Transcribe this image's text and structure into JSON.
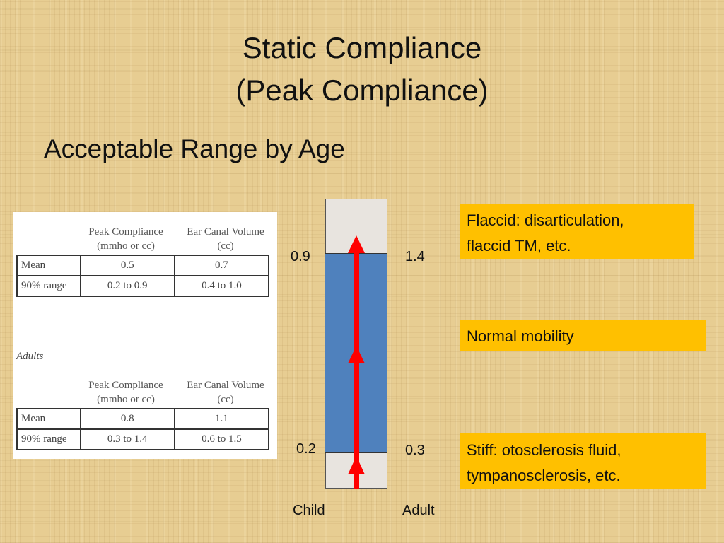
{
  "slide": {
    "title_line1": "Static Compliance",
    "title_line2": "(Peak Compliance)",
    "subtitle": "Acceptable Range by Age"
  },
  "reference_tables": {
    "adults_label": "Adults",
    "children": {
      "header_peak": [
        "Peak Compliance",
        "(mmho or cc)"
      ],
      "header_ecv": [
        "Ear Canal Volume",
        "(cc)"
      ],
      "rows": [
        {
          "label": "Mean",
          "peak": "0.5",
          "ecv": "0.7"
        },
        {
          "label": "90% range",
          "peak": "0.2 to 0.9",
          "ecv": "0.4 to 1.0"
        }
      ]
    },
    "adults": {
      "header_peak": [
        "Peak Compliance",
        "(mmho or cc)"
      ],
      "header_ecv": [
        "Ear Canal Volume",
        "(cc)"
      ],
      "rows": [
        {
          "label": "Mean",
          "peak": "0.8",
          "ecv": "1.1"
        },
        {
          "label": "90% range",
          "peak": "0.3 to 1.4",
          "ecv": "0.6 to 1.5"
        }
      ]
    }
  },
  "range_bar": {
    "child_upper": "0.9",
    "child_lower": "0.2",
    "adult_upper": "1.4",
    "adult_lower": "0.3",
    "child_label": "Child",
    "adult_label": "Adult",
    "fill_color": "#4f81bd",
    "arrow_color": "#ff0000"
  },
  "notes": {
    "flaccid": [
      "Flaccid:  disarticulation,",
      "flaccid TM, etc."
    ],
    "normal": "Normal mobility",
    "stiff": [
      "Stiff:  otosclerosis  fluid,",
      "tympanosclerosis, etc."
    ],
    "box_color": "#ffc000"
  }
}
